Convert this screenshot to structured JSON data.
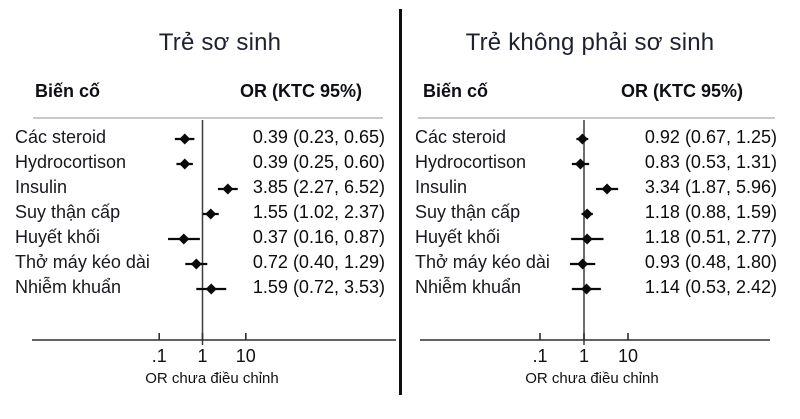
{
  "colors": {
    "text": "#111111",
    "title": "#1d2130",
    "header_rule": "#c9c9c9",
    "axis": "#2f2f2f",
    "ref_line": "#3c3c3c",
    "marker": "#0a0a0a",
    "divider": "#0f0f0f"
  },
  "chart_data": [
    {
      "type": "scatter",
      "subtype": "forest",
      "title": "Trẻ sơ sinh",
      "columns": {
        "event": "Biến cố",
        "or": "OR (KTC 95%)"
      },
      "xlabel": "OR chưa điều chỉnh",
      "xscale": "log",
      "xticks": [
        0.1,
        1,
        10
      ],
      "xtick_labels": [
        ".1",
        "1",
        "10"
      ],
      "ref_line": 1,
      "legend": "none",
      "grid": false,
      "rows": [
        {
          "label": "Các steroid",
          "or": 0.39,
          "ci_low": 0.23,
          "ci_high": 0.65,
          "display": "0.39 (0.23, 0.65)"
        },
        {
          "label": "Hydrocortison",
          "or": 0.39,
          "ci_low": 0.25,
          "ci_high": 0.6,
          "display": "0.39 (0.25, 0.60)"
        },
        {
          "label": "Insulin",
          "or": 3.85,
          "ci_low": 2.27,
          "ci_high": 6.52,
          "display": "3.85 (2.27, 6.52)"
        },
        {
          "label": "Suy thận cấp",
          "or": 1.55,
          "ci_low": 1.02,
          "ci_high": 2.37,
          "display": "1.55 (1.02, 2.37)"
        },
        {
          "label": "Huyết khối",
          "or": 0.37,
          "ci_low": 0.16,
          "ci_high": 0.87,
          "display": "0.37 (0.16, 0.87)"
        },
        {
          "label": "Thở máy kéo dài",
          "or": 0.72,
          "ci_low": 0.4,
          "ci_high": 1.29,
          "display": "0.72 (0.40, 1.29)"
        },
        {
          "label": "Nhiễm khuẩn",
          "or": 1.59,
          "ci_low": 0.72,
          "ci_high": 3.53,
          "display": "1.59 (0.72, 3.53)"
        }
      ]
    },
    {
      "type": "scatter",
      "subtype": "forest",
      "title": "Trẻ không phải sơ sinh",
      "columns": {
        "event": "Biến cố",
        "or": "OR (KTC 95%)"
      },
      "xlabel": "OR chưa điều chỉnh",
      "xscale": "log",
      "xticks": [
        0.1,
        1,
        10
      ],
      "xtick_labels": [
        ".1",
        "1",
        "10"
      ],
      "ref_line": 1,
      "legend": "none",
      "grid": false,
      "rows": [
        {
          "label": "Các steroid",
          "or": 0.92,
          "ci_low": 0.67,
          "ci_high": 1.25,
          "display": "0.92 (0.67, 1.25)"
        },
        {
          "label": "Hydrocortison",
          "or": 0.83,
          "ci_low": 0.53,
          "ci_high": 1.31,
          "display": "0.83 (0.53, 1.31)"
        },
        {
          "label": "Insulin",
          "or": 3.34,
          "ci_low": 1.87,
          "ci_high": 5.96,
          "display": "3.34 (1.87, 5.96)"
        },
        {
          "label": "Suy thận cấp",
          "or": 1.18,
          "ci_low": 0.88,
          "ci_high": 1.59,
          "display": "1.18 (0.88, 1.59)"
        },
        {
          "label": "Huyết khối",
          "or": 1.18,
          "ci_low": 0.51,
          "ci_high": 2.77,
          "display": "1.18 (0.51, 2.77)"
        },
        {
          "label": "Thở máy kéo dài",
          "or": 0.93,
          "ci_low": 0.48,
          "ci_high": 1.8,
          "display": "0.93 (0.48, 1.80)"
        },
        {
          "label": "Nhiễm khuẩn",
          "or": 1.14,
          "ci_low": 0.53,
          "ci_high": 2.42,
          "display": "1.14 (0.53, 2.42)"
        }
      ]
    }
  ]
}
